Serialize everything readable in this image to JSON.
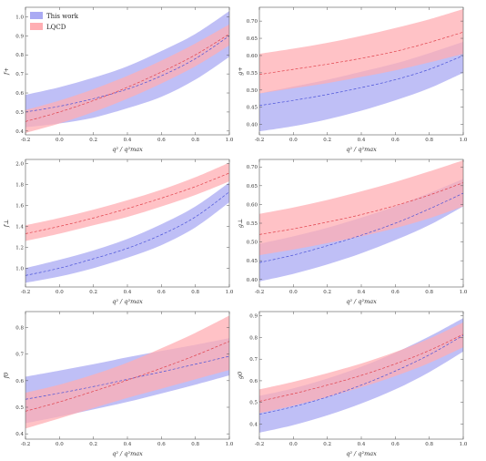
{
  "legend": {
    "items": [
      {
        "label": "This work",
        "color": "#aaaaf3"
      },
      {
        "label": "LQCD",
        "color": "#ffaeb3"
      }
    ]
  },
  "colors": {
    "this_work_band": "#aaaaf3",
    "this_work_line": "#4a52d8",
    "lqcd_band": "#ffaeb3",
    "lqcd_line": "#e0404a"
  },
  "chart_data": [
    {
      "type": "area",
      "ylabel": "f+",
      "xlabel": "q² / q²max",
      "xlim": [
        -0.2,
        1.0
      ],
      "ylim": [
        0.38,
        1.05
      ],
      "xticks": [
        "-0.2",
        "0.0",
        "0.2",
        "0.4",
        "0.6",
        "0.8",
        "1.0"
      ],
      "yticks": [
        "0.4",
        "0.5",
        "0.6",
        "0.7",
        "0.8",
        "0.9",
        "1.0"
      ],
      "x": [
        -0.2,
        0.0,
        0.2,
        0.4,
        0.6,
        0.8,
        1.0
      ],
      "series": [
        {
          "name": "This work",
          "central": [
            0.5,
            0.53,
            0.57,
            0.62,
            0.69,
            0.78,
            0.9
          ],
          "lower": [
            0.42,
            0.44,
            0.47,
            0.52,
            0.58,
            0.67,
            0.79
          ],
          "upper": [
            0.59,
            0.63,
            0.68,
            0.74,
            0.82,
            0.91,
            1.03
          ]
        },
        {
          "name": "LQCD",
          "central": [
            0.45,
            0.5,
            0.56,
            0.63,
            0.71,
            0.8,
            0.91
          ],
          "lower": [
            0.39,
            0.44,
            0.5,
            0.57,
            0.65,
            0.74,
            0.85
          ],
          "upper": [
            0.51,
            0.56,
            0.62,
            0.69,
            0.77,
            0.86,
            0.96
          ]
        }
      ]
    },
    {
      "type": "area",
      "ylabel": "g+",
      "xlabel": "q² / q²max",
      "xlim": [
        -0.2,
        1.0
      ],
      "ylim": [
        0.37,
        0.74
      ],
      "xticks": [
        "-0.2",
        "0.0",
        "0.2",
        "0.4",
        "0.6",
        "0.8",
        "1.0"
      ],
      "yticks": [
        "0.40",
        "0.45",
        "0.50",
        "0.55",
        "0.60",
        "0.65",
        "0.70"
      ],
      "x": [
        -0.2,
        0.0,
        0.2,
        0.4,
        0.6,
        0.8,
        1.0
      ],
      "series": [
        {
          "name": "This work",
          "central": [
            0.455,
            0.47,
            0.487,
            0.507,
            0.53,
            0.56,
            0.6
          ],
          "lower": [
            0.38,
            0.395,
            0.415,
            0.44,
            0.47,
            0.505,
            0.55
          ],
          "upper": [
            0.49,
            0.51,
            0.53,
            0.553,
            0.577,
            0.607,
            0.64
          ]
        },
        {
          "name": "LQCD",
          "central": [
            0.545,
            0.56,
            0.575,
            0.592,
            0.612,
            0.638,
            0.668
          ],
          "lower": [
            0.49,
            0.505,
            0.52,
            0.538,
            0.557,
            0.58,
            0.605
          ],
          "upper": [
            0.605,
            0.62,
            0.637,
            0.657,
            0.68,
            0.705,
            0.735
          ]
        }
      ]
    },
    {
      "type": "area",
      "ylabel": "f⊥",
      "xlabel": "q² / q²max",
      "xlim": [
        -0.2,
        1.0
      ],
      "ylim": [
        0.82,
        2.04
      ],
      "xticks": [
        "-0.2",
        "0.0",
        "0.2",
        "0.4",
        "0.6",
        "0.8",
        "1.0"
      ],
      "yticks": [
        "1.0",
        "1.2",
        "1.4",
        "1.6",
        "1.8",
        "2.0"
      ],
      "x": [
        -0.2,
        0.0,
        0.2,
        0.4,
        0.6,
        0.8,
        1.0
      ],
      "series": [
        {
          "name": "This work",
          "central": [
            0.93,
            1.0,
            1.09,
            1.19,
            1.32,
            1.49,
            1.73
          ],
          "lower": [
            0.86,
            0.92,
            1.0,
            1.1,
            1.22,
            1.39,
            1.63
          ],
          "upper": [
            1.0,
            1.08,
            1.17,
            1.28,
            1.42,
            1.59,
            1.82
          ]
        },
        {
          "name": "LQCD",
          "central": [
            1.33,
            1.4,
            1.48,
            1.57,
            1.67,
            1.78,
            1.91
          ],
          "lower": [
            1.26,
            1.33,
            1.41,
            1.49,
            1.59,
            1.7,
            1.83
          ],
          "upper": [
            1.41,
            1.48,
            1.56,
            1.65,
            1.75,
            1.87,
            2.01
          ]
        }
      ]
    },
    {
      "type": "area",
      "ylabel": "g⊥",
      "xlabel": "q² / q²max",
      "xlim": [
        -0.2,
        1.0
      ],
      "ylim": [
        0.38,
        0.72
      ],
      "xticks": [
        "-0.2",
        "0.0",
        "0.2",
        "0.4",
        "0.6",
        "0.8",
        "1.0"
      ],
      "yticks": [
        "0.40",
        "0.45",
        "0.50",
        "0.55",
        "0.60",
        "0.65",
        "0.70"
      ],
      "x": [
        -0.2,
        0.0,
        0.2,
        0.4,
        0.6,
        0.8,
        1.0
      ],
      "series": [
        {
          "name": "This work",
          "central": [
            0.445,
            0.465,
            0.49,
            0.518,
            0.55,
            0.588,
            0.63
          ],
          "lower": [
            0.395,
            0.415,
            0.44,
            0.47,
            0.505,
            0.545,
            0.595
          ],
          "upper": [
            0.495,
            0.515,
            0.538,
            0.565,
            0.595,
            0.63,
            0.668
          ]
        },
        {
          "name": "LQCD",
          "central": [
            0.52,
            0.535,
            0.553,
            0.573,
            0.597,
            0.625,
            0.658
          ],
          "lower": [
            0.465,
            0.48,
            0.497,
            0.515,
            0.537,
            0.563,
            0.595
          ],
          "upper": [
            0.575,
            0.592,
            0.612,
            0.635,
            0.66,
            0.688,
            0.718
          ]
        }
      ]
    },
    {
      "type": "area",
      "ylabel": "f0",
      "xlabel": "q² / q²max",
      "xlim": [
        -0.2,
        1.0
      ],
      "ylim": [
        0.38,
        0.86
      ],
      "xticks": [
        "-0.2",
        "0.0",
        "0.2",
        "0.4",
        "0.6",
        "0.8",
        "1.0"
      ],
      "yticks": [
        "0.4",
        "0.5",
        "0.6",
        "0.7",
        "0.8"
      ],
      "x": [
        -0.2,
        0.0,
        0.2,
        0.4,
        0.6,
        0.8,
        1.0
      ],
      "series": [
        {
          "name": "This work",
          "central": [
            0.53,
            0.553,
            0.578,
            0.605,
            0.633,
            0.662,
            0.692
          ],
          "lower": [
            0.44,
            0.465,
            0.492,
            0.52,
            0.552,
            0.585,
            0.62
          ],
          "upper": [
            0.615,
            0.638,
            0.662,
            0.688,
            0.712,
            0.735,
            0.76
          ]
        },
        {
          "name": "LQCD",
          "central": [
            0.485,
            0.52,
            0.56,
            0.602,
            0.647,
            0.695,
            0.748
          ],
          "lower": [
            0.42,
            0.458,
            0.497,
            0.535,
            0.57,
            0.605,
            0.64
          ],
          "upper": [
            0.555,
            0.585,
            0.623,
            0.668,
            0.722,
            0.78,
            0.845
          ]
        }
      ]
    },
    {
      "type": "area",
      "ylabel": "g0",
      "xlabel": "q² / q²max",
      "xlim": [
        -0.2,
        1.0
      ],
      "ylim": [
        0.33,
        0.92
      ],
      "xticks": [
        "-0.2",
        "0.0",
        "0.2",
        "0.4",
        "0.6",
        "0.8",
        "1.0"
      ],
      "yticks": [
        "0.4",
        "0.5",
        "0.6",
        "0.7",
        "0.8",
        "0.9"
      ],
      "x": [
        -0.2,
        0.0,
        0.2,
        0.4,
        0.6,
        0.8,
        1.0
      ],
      "series": [
        {
          "name": "This work",
          "central": [
            0.445,
            0.48,
            0.525,
            0.58,
            0.645,
            0.72,
            0.81
          ],
          "lower": [
            0.36,
            0.395,
            0.44,
            0.495,
            0.56,
            0.64,
            0.735
          ],
          "upper": [
            0.53,
            0.565,
            0.61,
            0.665,
            0.73,
            0.805,
            0.89
          ]
        },
        {
          "name": "LQCD",
          "central": [
            0.505,
            0.54,
            0.58,
            0.625,
            0.678,
            0.74,
            0.815
          ],
          "lower": [
            0.45,
            0.485,
            0.525,
            0.57,
            0.622,
            0.682,
            0.755
          ],
          "upper": [
            0.56,
            0.595,
            0.635,
            0.68,
            0.733,
            0.795,
            0.87
          ]
        }
      ]
    }
  ]
}
